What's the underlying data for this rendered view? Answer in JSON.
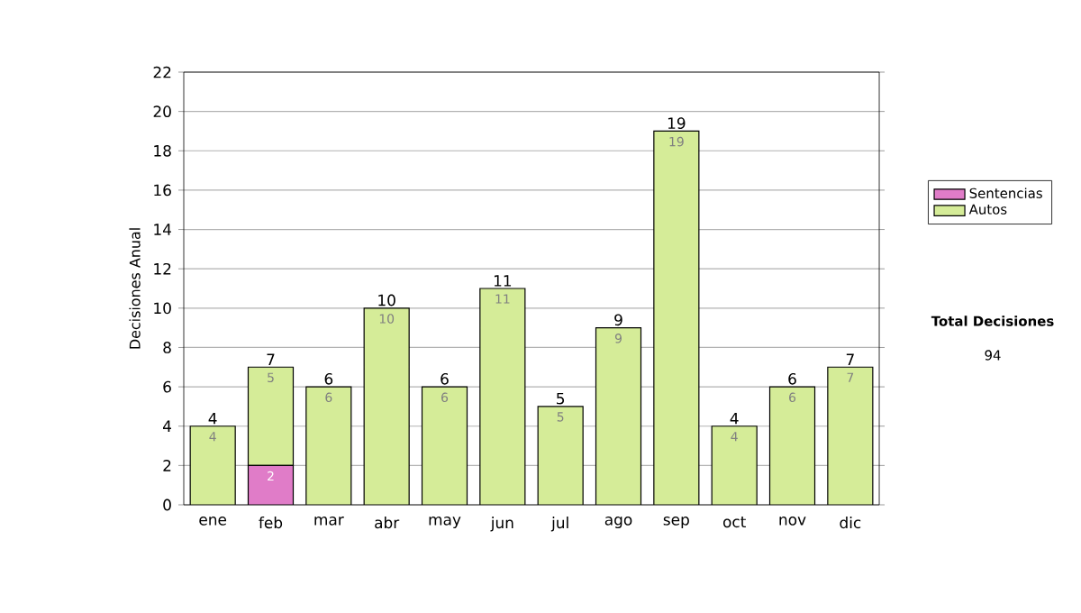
{
  "chart_data": {
    "type": "bar",
    "stacked": true,
    "ylabel": "Decisiones Anual",
    "categories": [
      "ene",
      "feb",
      "mar",
      "abr",
      "may",
      "jun",
      "jul",
      "ago",
      "sep",
      "oct",
      "nov",
      "dic"
    ],
    "series": [
      {
        "name": "Sentencias",
        "color": "#e07cc8",
        "values": [
          0,
          2,
          0,
          0,
          0,
          0,
          0,
          0,
          0,
          0,
          0,
          0
        ],
        "value_labels": [
          null,
          "2",
          null,
          null,
          null,
          null,
          null,
          null,
          null,
          null,
          null,
          null
        ]
      },
      {
        "name": "Autos",
        "color": "#d5ec98",
        "values": [
          4,
          5,
          6,
          10,
          6,
          11,
          5,
          9,
          19,
          4,
          6,
          7
        ],
        "value_labels": [
          "4",
          "5",
          "6",
          "10",
          "6",
          "11",
          "5",
          "9",
          "19",
          "4",
          "6",
          "7"
        ]
      }
    ],
    "totals": [
      "4",
      "7",
      "6",
      "10",
      "6",
      "11",
      "5",
      "9",
      "19",
      "4",
      "6",
      "7"
    ],
    "ylim": [
      0,
      22
    ],
    "yticks": [
      0,
      2,
      4,
      6,
      8,
      10,
      12,
      14,
      16,
      18,
      20,
      22
    ],
    "grid": "y",
    "legend": "right",
    "annotations": [
      "Total Decisiones",
      "94"
    ]
  }
}
